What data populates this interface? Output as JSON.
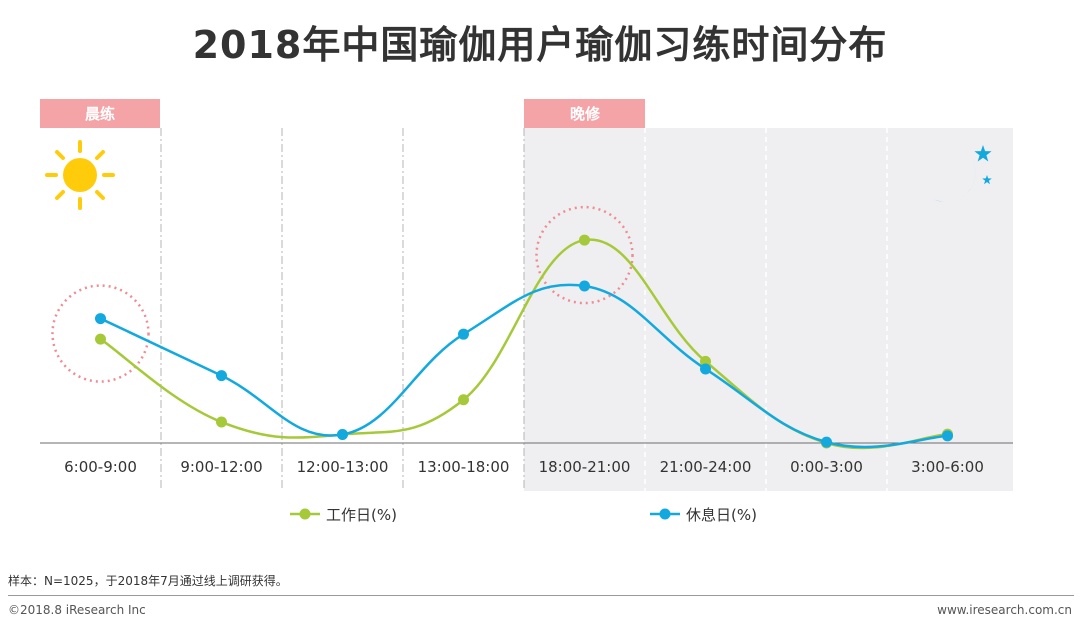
{
  "title": "2018年中国瑜伽用户瑜伽习练时间分布",
  "chart_data": {
    "type": "line",
    "title": "2018年中国瑜伽用户瑜伽习练时间分布",
    "categories": [
      "6:00-9:00",
      "9:00-12:00",
      "12:00-13:00",
      "13:00-18:00",
      "18:00-21:00",
      "21:00-24:00",
      "0:00-3:00",
      "3:00-6:00"
    ],
    "series": [
      {
        "name": "工作日(%)",
        "color": "#a6c939",
        "values": [
          23.3,
          4.7,
          1.9,
          9.7,
          45.5,
          18.3,
          0.0,
          2.0
        ]
      },
      {
        "name": "休息日(%)",
        "color": "#13a9df",
        "values": [
          27.9,
          15.1,
          1.9,
          24.4,
          35.2,
          16.6,
          0.2,
          1.6
        ]
      }
    ],
    "ylim": [
      0,
      50
    ],
    "grid": false,
    "legend": "bottom",
    "annotations": [
      {
        "label": "晨练",
        "from_category": 0,
        "to_category": 0
      },
      {
        "label": "晚修",
        "from_category": 4,
        "to_category": 7
      }
    ],
    "highlight_circles": [
      0,
      4
    ],
    "icons": {
      "morning": "sun-icon",
      "evening": "moon-stars-icon"
    },
    "colors": {
      "band": "#f4a3a6",
      "shade": "#efeff1",
      "sun": "#ffcc0c",
      "moon": "#13a9df",
      "circle": "#ee8c94"
    }
  },
  "footer": {
    "note": "样本：N=1025，于2018年7月通过线上调研获得。",
    "copyright": "©2018.8 iResearch Inc",
    "website": "www.iresearch.com.cn"
  }
}
